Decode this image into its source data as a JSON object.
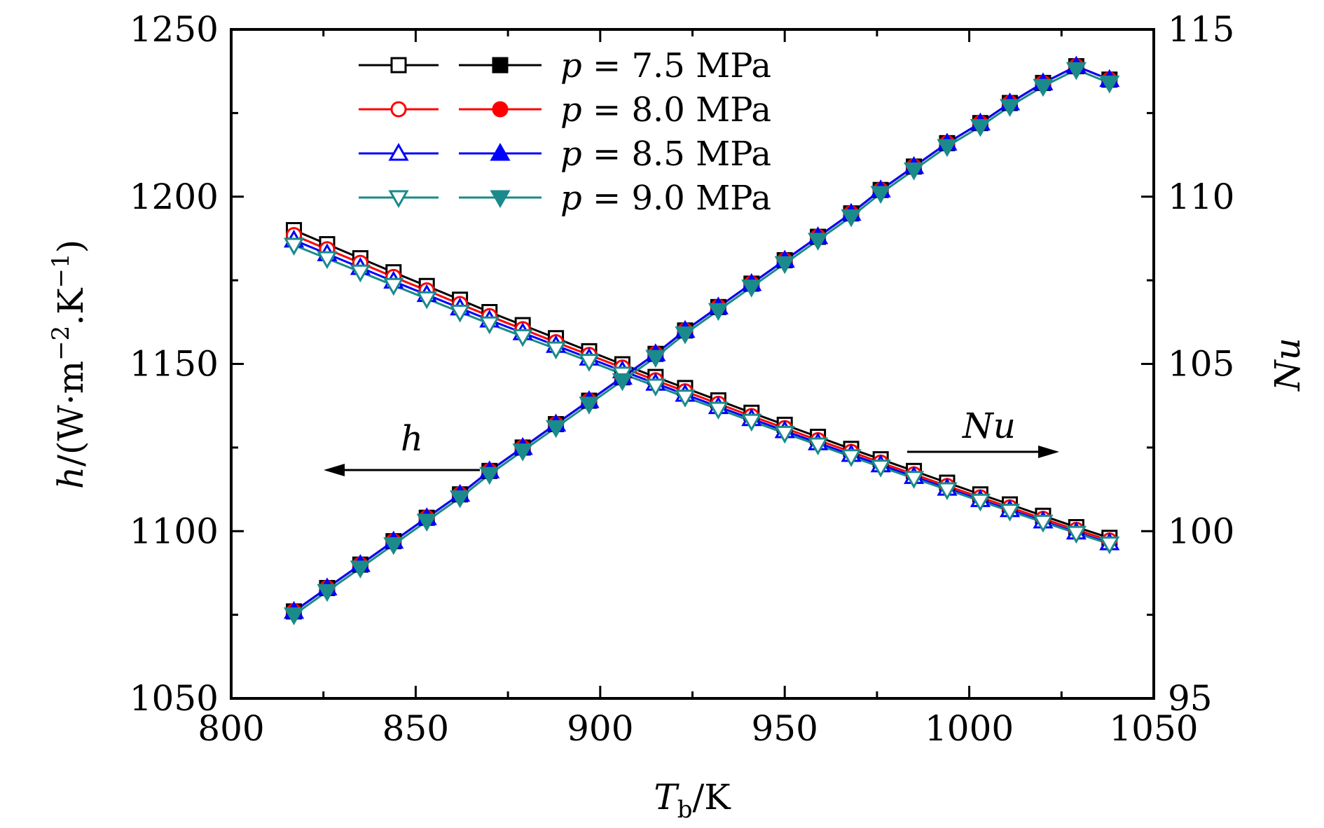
{
  "chart_data": {
    "type": "line",
    "x_axis": {
      "label_main": "T",
      "label_sub": "b",
      "label_unit": "/K",
      "range": [
        800,
        1050
      ],
      "ticks": [
        800,
        850,
        900,
        950,
        1000,
        1050
      ],
      "tick_labels": [
        "800",
        "850",
        "900",
        "950",
        "1000",
        "1050"
      ]
    },
    "y_left": {
      "label_var": "h",
      "label_unit": "/(W·m",
      "label_exp1": "−2",
      "label_mid": ".K",
      "label_exp2": "−1",
      "label_close": ")",
      "range": [
        1050,
        1250
      ],
      "ticks": [
        1050,
        1100,
        1150,
        1200,
        1250
      ],
      "tick_labels": [
        "1050",
        "1100",
        "1150",
        "1200",
        "1250"
      ]
    },
    "y_right": {
      "label": "Nu",
      "range": [
        95,
        115
      ],
      "ticks": [
        95,
        100,
        105,
        110,
        115
      ],
      "tick_labels": [
        "95",
        "100",
        "105",
        "110",
        "115"
      ]
    },
    "x": [
      817,
      826,
      835,
      844,
      853,
      862,
      870,
      879,
      888,
      897,
      906,
      915,
      923,
      932,
      941,
      950,
      959,
      968,
      976,
      985,
      994,
      1003,
      1011,
      1020,
      1029,
      1038
    ],
    "series": [
      {
        "name": "p = 7.5 MPa",
        "p_label": "p",
        "value_label": " = 7.5 MPa",
        "color": "#000000",
        "h": [
          1190,
          1185.8,
          1181.6,
          1177.4,
          1173.3,
          1169.2,
          1165.5,
          1161.6,
          1157.7,
          1153.8,
          1149.9,
          1146.1,
          1142.8,
          1139.1,
          1135.4,
          1131.8,
          1128.2,
          1124.6,
          1121.5,
          1118,
          1114.5,
          1111,
          1108,
          1104.6,
          1101.2,
          1098
        ],
        "nu": [
          97.6,
          98.3,
          99,
          99.7,
          100.4,
          101.1,
          101.8,
          102.5,
          103.2,
          103.9,
          104.6,
          105.3,
          106,
          106.7,
          107.4,
          108.1,
          108.8,
          109.5,
          110.2,
          110.9,
          111.6,
          112.2,
          112.8,
          113.4,
          113.9,
          113.5
        ]
      },
      {
        "name": "p = 8.0 MPa",
        "p_label": "p",
        "value_label": " = 8.0 MPa",
        "color": "#ff0000",
        "h": [
          1188.5,
          1184.3,
          1180.2,
          1176,
          1172,
          1167.9,
          1164.3,
          1160.4,
          1156.5,
          1152.7,
          1148.9,
          1145.1,
          1141.8,
          1138.1,
          1134.4,
          1130.8,
          1127.2,
          1123.7,
          1120.5,
          1117,
          1113.5,
          1110.1,
          1107.1,
          1103.7,
          1100.4,
          1097.2
        ],
        "nu": [
          97.6,
          98.3,
          99,
          99.7,
          100.4,
          101.1,
          101.8,
          102.5,
          103.2,
          103.9,
          104.6,
          105.3,
          106,
          106.7,
          107.4,
          108.1,
          108.8,
          109.5,
          110.2,
          110.9,
          111.6,
          112.2,
          112.8,
          113.4,
          113.9,
          113.5
        ]
      },
      {
        "name": "p = 8.5 MPa",
        "p_label": "p",
        "value_label": " = 8.5 MPa",
        "color": "#0000ff",
        "h": [
          1187,
          1182.9,
          1178.8,
          1174.7,
          1170.7,
          1166.7,
          1163.1,
          1159.3,
          1155.5,
          1151.7,
          1147.9,
          1144.2,
          1140.9,
          1137.2,
          1133.6,
          1130,
          1126.4,
          1122.9,
          1119.8,
          1116.3,
          1112.8,
          1109.4,
          1106.4,
          1103,
          1099.7,
          1096.5
        ],
        "nu": [
          97.6,
          98.3,
          99,
          99.7,
          100.4,
          101.1,
          101.8,
          102.5,
          103.2,
          103.9,
          104.6,
          105.3,
          106,
          106.7,
          107.4,
          108.1,
          108.8,
          109.5,
          110.2,
          110.9,
          111.6,
          112.2,
          112.8,
          113.4,
          113.9,
          113.5
        ]
      },
      {
        "name": "p = 9.0 MPa",
        "p_label": "p",
        "value_label": " = 9.0 MPa",
        "color": "#1a8a8a",
        "h": [
          1185.5,
          1181.5,
          1177.5,
          1173.5,
          1169.5,
          1165.5,
          1162,
          1158.2,
          1154.5,
          1150.8,
          1147,
          1143.4,
          1140.1,
          1136.5,
          1132.9,
          1129.3,
          1125.8,
          1122.3,
          1119.2,
          1115.8,
          1112.4,
          1109,
          1106,
          1102.7,
          1099.4,
          1096.2
        ],
        "nu": [
          97.5,
          98.2,
          98.9,
          99.6,
          100.3,
          101,
          101.7,
          102.4,
          103.1,
          103.8,
          104.5,
          105.2,
          105.9,
          106.6,
          107.3,
          108,
          108.7,
          109.4,
          110.1,
          110.8,
          111.5,
          112.1,
          112.7,
          113.3,
          113.8,
          113.4
        ]
      }
    ],
    "annotations": [
      {
        "text": "h",
        "arrow": "left",
        "target_axis": "left"
      },
      {
        "text": "Nu",
        "arrow": "right",
        "target_axis": "right"
      }
    ],
    "legend": {
      "position": "top-left",
      "open_markers": "h",
      "filled_markers": "Nu"
    },
    "markers": [
      "square",
      "circle",
      "triangle-up",
      "triangle-down"
    ],
    "grid": false
  }
}
